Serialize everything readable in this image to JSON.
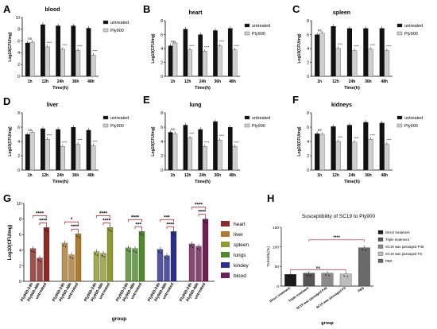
{
  "panels": {
    "A": {
      "letter": "A",
      "title": "blood"
    },
    "B": {
      "letter": "B",
      "title": "heart"
    },
    "C": {
      "letter": "C",
      "title": "spleen"
    },
    "D": {
      "letter": "D",
      "title": "liver"
    },
    "E": {
      "letter": "E",
      "title": "lung"
    },
    "F": {
      "letter": "F",
      "title": "kidneys"
    },
    "G": {
      "letter": "G"
    },
    "H": {
      "letter": "H",
      "title": "Susceptibility of SC19 to Ply900"
    }
  },
  "colors": {
    "untreated": "#111111",
    "ply900": "#cfcfcf",
    "heart": "#8c2a26",
    "liver": "#b07a2c",
    "spleen": "#8f9a2a",
    "lungs": "#4f8a2a",
    "kindey": "#2c2e8e",
    "blood": "#6e1f57",
    "bracket": "#b8151b",
    "h_bars": [
      "#1a1a1a",
      "#555555",
      "#8a8a8a",
      "#bdbdbd",
      "#6a6a6a"
    ]
  },
  "chart_data": [
    {
      "id": "A",
      "type": "bar",
      "title": "blood",
      "categories": [
        "1h",
        "12h",
        "24h",
        "36h",
        "48h"
      ],
      "xlabel": "Time(h)",
      "ylabel": "Log10(CFU/mg)",
      "ylim": [
        0,
        10
      ],
      "yticks": [
        0,
        2,
        4,
        6,
        8,
        10
      ],
      "legend": [
        "untreated",
        "Ply900"
      ],
      "legend_position": "right",
      "series": [
        {
          "name": "untreated",
          "values": [
            5.7,
            8.8,
            8.6,
            8.6,
            8.2
          ]
        },
        {
          "name": "Ply900",
          "values": [
            5.8,
            5.0,
            4.6,
            4.4,
            3.6
          ]
        }
      ],
      "significance": [
        "ns",
        "****",
        "****",
        "****",
        "****"
      ]
    },
    {
      "id": "B",
      "type": "bar",
      "title": "heart",
      "categories": [
        "1h",
        "12h",
        "24h",
        "36h",
        "48h"
      ],
      "xlabel": "Time(h)",
      "ylabel": "Log10(CFU/mg)",
      "ylim": [
        0,
        8
      ],
      "yticks": [
        0,
        2,
        4,
        6,
        8
      ],
      "legend": [
        "untreated",
        "Ply900"
      ],
      "legend_position": "right",
      "series": [
        {
          "name": "untreated",
          "values": [
            4.4,
            6.8,
            6.0,
            6.6,
            6.9
          ]
        },
        {
          "name": "Ply900",
          "values": [
            4.8,
            3.8,
            3.6,
            4.4,
            3.8
          ]
        }
      ],
      "significance": [
        "ns",
        "****",
        "****",
        "****",
        "****"
      ]
    },
    {
      "id": "C",
      "type": "bar",
      "title": "spleen",
      "categories": [
        "1h",
        "12h",
        "24h",
        "36h",
        "48h"
      ],
      "xlabel": "Time(h)",
      "ylabel": "Log10(CFU/mg)",
      "ylim": [
        0,
        8
      ],
      "yticks": [
        0,
        2,
        4,
        6,
        8
      ],
      "legend": [
        "untreated",
        "Ply900"
      ],
      "legend_position": "right",
      "series": [
        {
          "name": "untreated",
          "values": [
            6.0,
            7.2,
            6.9,
            6.9,
            6.9
          ]
        },
        {
          "name": "Ply900",
          "values": [
            6.2,
            4.0,
            3.7,
            3.9,
            3.7
          ]
        }
      ],
      "significance": [
        "ns",
        "****",
        "****",
        "****",
        "****"
      ]
    },
    {
      "id": "D",
      "type": "bar",
      "title": "liver",
      "categories": [
        "1h",
        "12h",
        "24h",
        "36h",
        "48h"
      ],
      "xlabel": "Time(h)",
      "ylabel": "Log10(CFU/mg)",
      "ylim": [
        0,
        8
      ],
      "yticks": [
        0,
        2,
        4,
        6,
        8
      ],
      "legend": [
        "untreated",
        "Ply900"
      ],
      "legend_position": "right",
      "series": [
        {
          "name": "untreated",
          "values": [
            5.0,
            5.8,
            5.7,
            6.0,
            5.6
          ]
        },
        {
          "name": "Ply900",
          "values": [
            5.3,
            4.3,
            3.3,
            3.6,
            3.4
          ]
        }
      ],
      "significance": [
        "ns",
        "****",
        "****",
        "****",
        "****"
      ]
    },
    {
      "id": "E",
      "type": "bar",
      "title": "lung",
      "categories": [
        "1h",
        "12h",
        "24h",
        "36h",
        "48h"
      ],
      "xlabel": "Time(h)",
      "ylabel": "Log10(CFU/mg)",
      "ylim": [
        0,
        8
      ],
      "yticks": [
        0,
        2,
        4,
        6,
        8
      ],
      "legend": [
        "untreated",
        "Ply900"
      ],
      "legend_position": "right",
      "series": [
        {
          "name": "untreated",
          "values": [
            5.3,
            6.3,
            5.7,
            6.8,
            6.0
          ]
        },
        {
          "name": "Ply900",
          "values": [
            5.1,
            4.5,
            3.3,
            4.2,
            3.3
          ]
        }
      ],
      "significance": [
        "ns",
        "****",
        "****",
        "****",
        "****"
      ]
    },
    {
      "id": "F",
      "type": "bar",
      "title": "kidneys",
      "categories": [
        "1h",
        "12h",
        "24h",
        "36h",
        "48h"
      ],
      "xlabel": "Time(h)",
      "ylabel": "Log10(CFU/mg)",
      "ylim": [
        0,
        8
      ],
      "yticks": [
        0,
        2,
        4,
        6,
        8
      ],
      "legend": [
        "untreated",
        "Ply900"
      ],
      "legend_position": "right",
      "series": [
        {
          "name": "untreated",
          "values": [
            5.1,
            6.1,
            6.3,
            6.7,
            6.6
          ]
        },
        {
          "name": "Ply900",
          "values": [
            5.0,
            4.0,
            3.9,
            4.3,
            3.6
          ]
        }
      ],
      "significance": [
        "ns",
        "****",
        "****",
        "****",
        "****"
      ]
    },
    {
      "id": "G",
      "type": "bar",
      "xlabel": "group",
      "ylabel": "Log10(CFU/mg)",
      "ylim": [
        0,
        10
      ],
      "yticks": [
        0,
        2,
        4,
        6,
        8,
        10
      ],
      "categories": [
        "Ply900-24h",
        "Ply900-48h",
        "untreated"
      ],
      "legend": [
        "heart",
        "liver",
        "spleen",
        "lungs",
        "kindey",
        "blood"
      ],
      "legend_position": "right",
      "groups": [
        {
          "name": "heart",
          "values": [
            4.2,
            3.0,
            6.9
          ],
          "sig_pair_12": "****",
          "sig_pair_23": "****"
        },
        {
          "name": "liver",
          "values": [
            4.9,
            3.4,
            6.1
          ],
          "sig_pair_12": "*",
          "sig_pair_23": "****"
        },
        {
          "name": "spleen",
          "values": [
            3.8,
            3.6,
            6.9
          ],
          "sig_pair_12": "****",
          "sig_pair_23": "****"
        },
        {
          "name": "lungs",
          "values": [
            4.3,
            4.2,
            6.4
          ],
          "sig_pair_12": "****",
          "sig_pair_23": "***"
        },
        {
          "name": "kindey",
          "values": [
            4.1,
            3.3,
            6.4
          ],
          "sig_pair_12": "***",
          "sig_pair_23": "****"
        },
        {
          "name": "blood",
          "values": [
            4.8,
            4.5,
            8.0
          ],
          "sig_pair_12": "****",
          "sig_pair_23": "****"
        }
      ]
    },
    {
      "id": "H",
      "type": "bar",
      "title": "Susceptibility of SC19 to Ply900",
      "xlabel": "group",
      "ylabel": "Turbidity(%)",
      "ylim": [
        0,
        150
      ],
      "yticks": [
        0,
        50,
        100,
        150
      ],
      "categories": [
        "Direct treatment",
        "Triple treatment",
        "SC19 was passaged P45",
        "SC19 was passaged P3",
        "PBS"
      ],
      "values": [
        30,
        33,
        33,
        31,
        98
      ],
      "legend": [
        "Direct treatment",
        "Triple treatment",
        "SC19 was passaged P45",
        "SC19 was passaged P3",
        "PBS"
      ],
      "legend_position": "right",
      "brackets": [
        {
          "from": 0,
          "to": 3,
          "label": "ns"
        },
        {
          "from": 1,
          "to": 4,
          "label": "****"
        }
      ]
    }
  ]
}
